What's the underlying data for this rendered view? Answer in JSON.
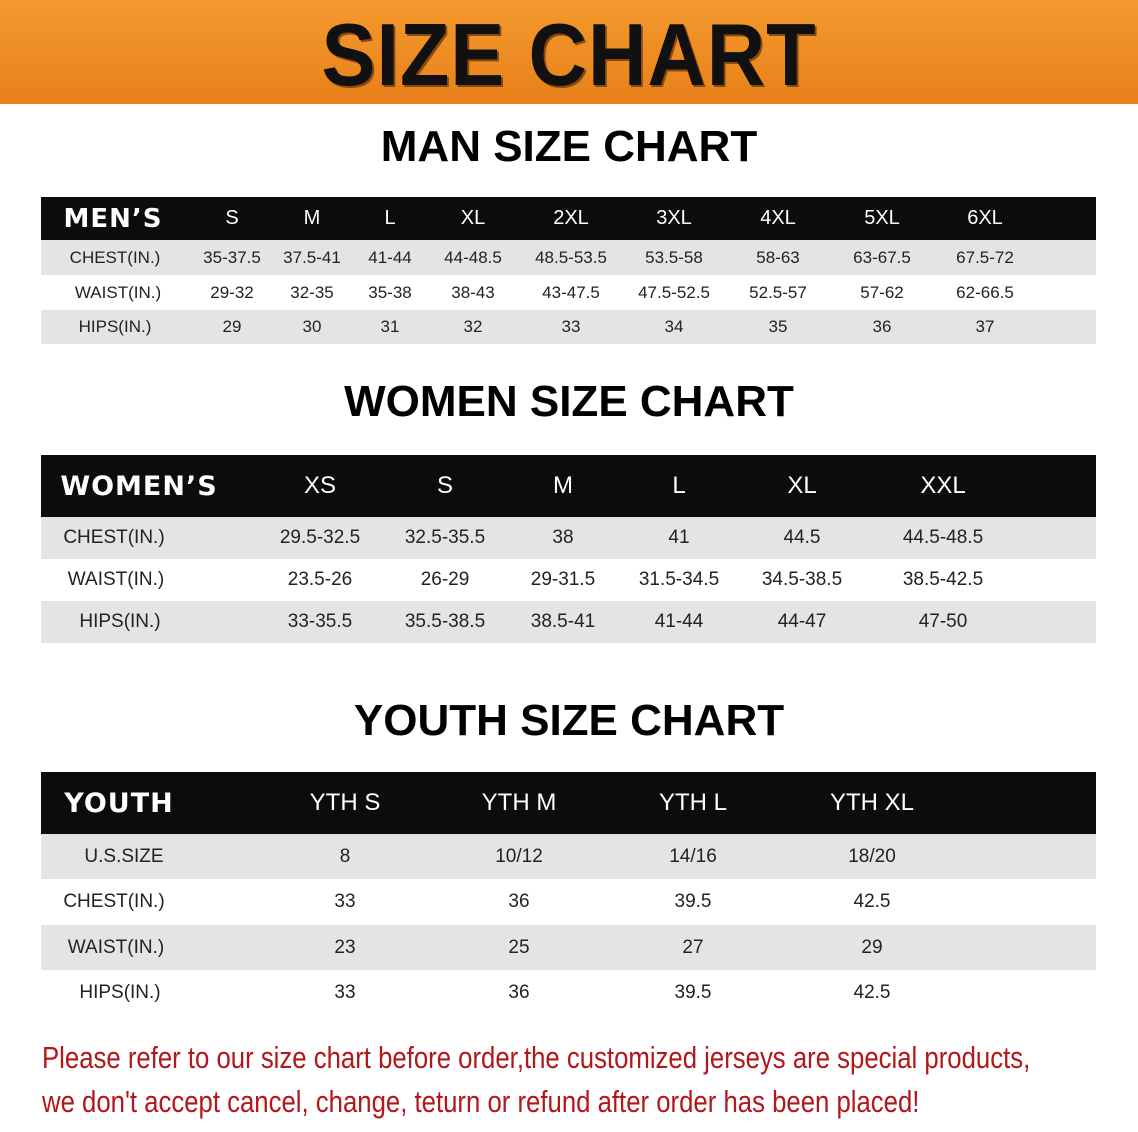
{
  "banner": {
    "title": "SIZE CHART",
    "color": "#ef8a1f"
  },
  "men": {
    "title": "MAN SIZE CHART",
    "header": [
      "MEN’S",
      "S",
      "M",
      "L",
      "XL",
      "2XL",
      "3XL",
      "4XL",
      "5XL",
      "6XL"
    ],
    "rows": [
      [
        "CHEST(IN.)",
        "35-37.5",
        "37.5-41",
        "41-44",
        "44-48.5",
        "48.5-53.5",
        "53.5-58",
        "58-63",
        "63-67.5",
        "67.5-72"
      ],
      [
        "WAIST(IN.)",
        "29-32",
        "32-35",
        "35-38",
        "38-43",
        "43-47.5",
        "47.5-52.5",
        "52.5-57",
        "57-62",
        "62-66.5"
      ],
      [
        "HIPS(IN.)",
        "29",
        "30",
        "31",
        "32",
        "33",
        "34",
        "35",
        "36",
        "37"
      ]
    ]
  },
  "women": {
    "title": "WOMEN SIZE CHART",
    "header": [
      "WOMEN’S",
      "XS",
      "S",
      "M",
      "L",
      "XL",
      "XXL"
    ],
    "rows": [
      [
        "CHEST(IN.)",
        "29.5-32.5",
        "32.5-35.5",
        "38",
        "41",
        "44.5",
        "44.5-48.5"
      ],
      [
        "WAIST(IN.)",
        "23.5-26",
        "26-29",
        "29-31.5",
        "31.5-34.5",
        "34.5-38.5",
        "38.5-42.5"
      ],
      [
        "HIPS(IN.)",
        "33-35.5",
        "35.5-38.5",
        "38.5-41",
        "41-44",
        "44-47",
        "47-50"
      ]
    ]
  },
  "youth": {
    "title": "YOUTH SIZE CHART",
    "header": [
      "YOUTH",
      "YTH S",
      "YTH M",
      "YTH L",
      "YTH XL"
    ],
    "rows": [
      [
        "U.S.SIZE",
        "8",
        "10/12",
        "14/16",
        "18/20"
      ],
      [
        "CHEST(IN.)",
        "33",
        "36",
        "39.5",
        "42.5"
      ],
      [
        "WAIST(IN.)",
        "23",
        "25",
        "27",
        "29"
      ],
      [
        "HIPS(IN.)",
        "33",
        "36",
        "39.5",
        "42.5"
      ]
    ]
  },
  "notice": {
    "line1": "Please refer to our size chart before order,the customized jerseys are special products,",
    "line2": "we don't accept cancel, change, teturn or refund after order has been placed!",
    "color": "#b3161b"
  }
}
